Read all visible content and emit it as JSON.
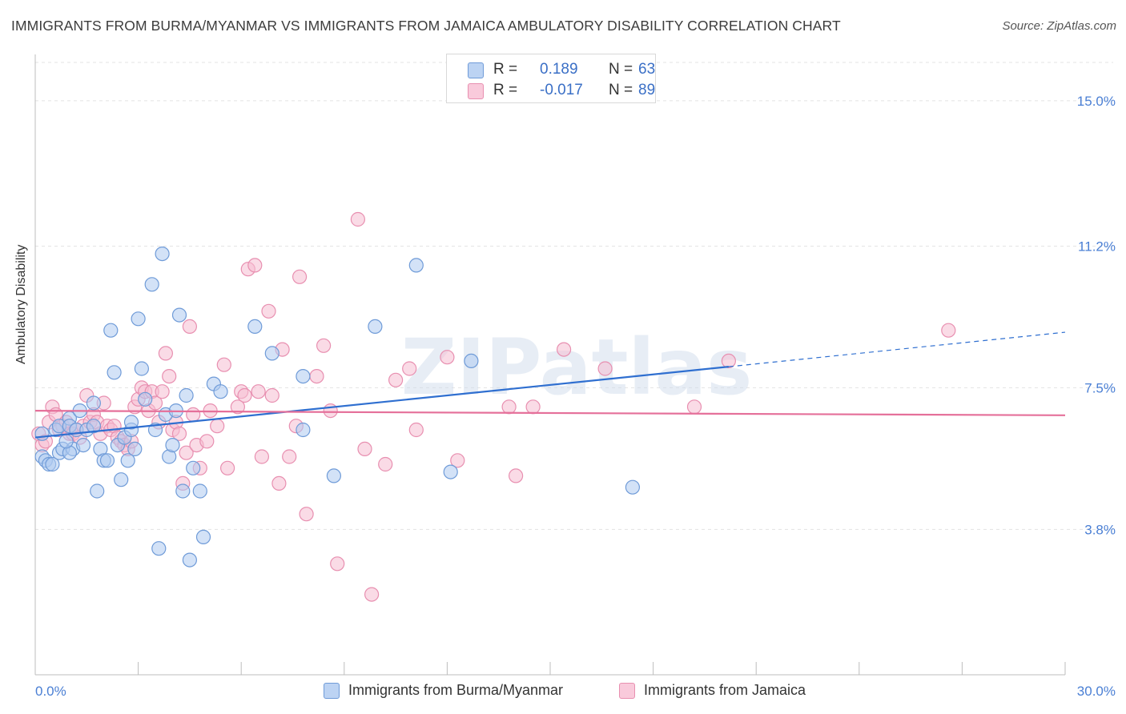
{
  "title": "IMMIGRANTS FROM BURMA/MYANMAR VS IMMIGRANTS FROM JAMAICA AMBULATORY DISABILITY CORRELATION CHART",
  "source": "Source: ZipAtlas.com",
  "watermark": "ZIPatlas",
  "legend": {
    "rows": [
      {
        "r_label": "R =",
        "r_value": "0.189",
        "n_label": "N =",
        "n_value": "63"
      },
      {
        "r_label": "R =",
        "r_value": "-0.017",
        "n_label": "N =",
        "n_value": "89"
      }
    ]
  },
  "colors": {
    "blue_fill": "#aecbf0",
    "blue_stroke": "#6f9bd8",
    "blue_line": "#2f6fd0",
    "pink_fill": "#f6bed2",
    "pink_stroke": "#e88fb0",
    "pink_line": "#e5709a",
    "tick_text": "#4a7fd4",
    "grid": "#e3e3e3"
  },
  "chart_data": {
    "type": "scatter",
    "title": "IMMIGRANTS FROM BURMA/MYANMAR VS IMMIGRANTS FROM JAMAICA AMBULATORY DISABILITY CORRELATION CHART",
    "xlabel": "",
    "ylabel": "Ambulatory Disability",
    "xlim": [
      0,
      30
    ],
    "ylim": [
      0,
      16
    ],
    "x_tick_labels": [
      "0.0%",
      "30.0%"
    ],
    "y_ticks": [
      3.8,
      7.5,
      11.2,
      15.0
    ],
    "y_tick_labels": [
      "3.8%",
      "7.5%",
      "11.2%",
      "15.0%"
    ],
    "grid": true,
    "legend_placement": "top-center",
    "series": [
      {
        "name": "Immigrants from Burma/Myanmar",
        "color": "#6f9bd8",
        "trend": {
          "x0": 0,
          "y0": 6.2,
          "x1": 20.2,
          "y1": 8.05,
          "dashed_to_x": 30,
          "dashed_to_y": 8.95
        },
        "points": [
          [
            0.2,
            6.3
          ],
          [
            0.2,
            5.7
          ],
          [
            0.3,
            5.6
          ],
          [
            0.4,
            5.5
          ],
          [
            0.5,
            5.5
          ],
          [
            0.6,
            6.4
          ],
          [
            0.7,
            6.5
          ],
          [
            0.7,
            5.8
          ],
          [
            0.8,
            5.9
          ],
          [
            1.0,
            6.7
          ],
          [
            1.0,
            6.5
          ],
          [
            1.1,
            5.9
          ],
          [
            1.2,
            6.4
          ],
          [
            1.3,
            6.9
          ],
          [
            1.4,
            6.0
          ],
          [
            1.5,
            6.4
          ],
          [
            1.7,
            6.5
          ],
          [
            1.7,
            7.1
          ],
          [
            1.8,
            4.8
          ],
          [
            1.9,
            5.9
          ],
          [
            2.0,
            5.6
          ],
          [
            2.1,
            5.6
          ],
          [
            2.2,
            9.0
          ],
          [
            2.3,
            7.9
          ],
          [
            2.4,
            6.0
          ],
          [
            2.5,
            5.1
          ],
          [
            2.6,
            6.2
          ],
          [
            2.7,
            5.6
          ],
          [
            2.8,
            6.4
          ],
          [
            2.8,
            6.6
          ],
          [
            3.0,
            9.3
          ],
          [
            3.1,
            8.0
          ],
          [
            3.2,
            7.2
          ],
          [
            3.4,
            10.2
          ],
          [
            3.5,
            6.4
          ],
          [
            3.6,
            3.3
          ],
          [
            3.7,
            11.0
          ],
          [
            3.8,
            6.8
          ],
          [
            3.9,
            5.7
          ],
          [
            4.0,
            6.0
          ],
          [
            4.1,
            6.9
          ],
          [
            4.2,
            9.4
          ],
          [
            4.3,
            4.8
          ],
          [
            4.4,
            7.3
          ],
          [
            4.5,
            3.0
          ],
          [
            4.6,
            5.4
          ],
          [
            4.8,
            4.8
          ],
          [
            4.9,
            3.6
          ],
          [
            5.2,
            7.6
          ],
          [
            5.4,
            7.4
          ],
          [
            6.4,
            9.1
          ],
          [
            6.9,
            8.4
          ],
          [
            7.8,
            7.8
          ],
          [
            7.8,
            6.4
          ],
          [
            8.7,
            5.2
          ],
          [
            9.9,
            9.1
          ],
          [
            11.1,
            10.7
          ],
          [
            12.1,
            5.3
          ],
          [
            12.7,
            8.2
          ],
          [
            17.4,
            4.9
          ],
          [
            1.0,
            5.8
          ],
          [
            2.9,
            5.9
          ],
          [
            0.9,
            6.1
          ]
        ]
      },
      {
        "name": "Immigrants from Jamaica",
        "color": "#e88fb0",
        "trend": {
          "x0": 0,
          "y0": 6.9,
          "x1": 30,
          "y1": 6.78
        },
        "points": [
          [
            0.1,
            6.3
          ],
          [
            0.2,
            6.0
          ],
          [
            0.3,
            6.1
          ],
          [
            0.4,
            6.6
          ],
          [
            0.5,
            7.0
          ],
          [
            0.6,
            6.8
          ],
          [
            0.7,
            6.4
          ],
          [
            0.8,
            6.5
          ],
          [
            0.9,
            6.6
          ],
          [
            1.0,
            6.3
          ],
          [
            1.1,
            6.3
          ],
          [
            1.2,
            6.4
          ],
          [
            1.3,
            6.2
          ],
          [
            1.4,
            6.5
          ],
          [
            1.5,
            7.3
          ],
          [
            1.6,
            6.6
          ],
          [
            1.7,
            6.8
          ],
          [
            1.8,
            6.6
          ],
          [
            1.9,
            6.3
          ],
          [
            2.0,
            7.1
          ],
          [
            2.1,
            6.5
          ],
          [
            2.2,
            6.4
          ],
          [
            2.3,
            6.5
          ],
          [
            2.4,
            6.2
          ],
          [
            2.5,
            6.1
          ],
          [
            2.6,
            6.0
          ],
          [
            2.7,
            5.9
          ],
          [
            2.8,
            6.1
          ],
          [
            2.9,
            7.0
          ],
          [
            3.0,
            7.2
          ],
          [
            3.1,
            7.5
          ],
          [
            3.2,
            7.4
          ],
          [
            3.3,
            6.9
          ],
          [
            3.4,
            7.4
          ],
          [
            3.5,
            7.1
          ],
          [
            3.6,
            6.6
          ],
          [
            3.7,
            7.4
          ],
          [
            3.8,
            8.4
          ],
          [
            3.9,
            7.8
          ],
          [
            4.0,
            6.4
          ],
          [
            4.1,
            6.6
          ],
          [
            4.2,
            6.3
          ],
          [
            4.3,
            5.0
          ],
          [
            4.4,
            5.8
          ],
          [
            4.5,
            9.1
          ],
          [
            4.6,
            6.8
          ],
          [
            4.7,
            6.0
          ],
          [
            4.8,
            5.4
          ],
          [
            5.0,
            6.1
          ],
          [
            5.1,
            6.9
          ],
          [
            5.3,
            6.5
          ],
          [
            5.5,
            8.1
          ],
          [
            5.6,
            5.4
          ],
          [
            5.9,
            7.0
          ],
          [
            6.0,
            7.4
          ],
          [
            6.1,
            7.3
          ],
          [
            6.2,
            10.6
          ],
          [
            6.4,
            10.7
          ],
          [
            6.5,
            7.4
          ],
          [
            6.6,
            5.7
          ],
          [
            6.8,
            9.5
          ],
          [
            6.9,
            7.3
          ],
          [
            7.1,
            5.0
          ],
          [
            7.2,
            8.5
          ],
          [
            7.4,
            5.7
          ],
          [
            7.6,
            6.5
          ],
          [
            7.7,
            10.4
          ],
          [
            7.9,
            4.2
          ],
          [
            8.2,
            7.8
          ],
          [
            8.4,
            8.6
          ],
          [
            8.6,
            6.9
          ],
          [
            8.8,
            2.9
          ],
          [
            9.4,
            11.9
          ],
          [
            9.6,
            5.9
          ],
          [
            9.8,
            2.1
          ],
          [
            10.2,
            5.5
          ],
          [
            10.5,
            7.7
          ],
          [
            10.9,
            8.0
          ],
          [
            11.1,
            6.4
          ],
          [
            12.0,
            8.3
          ],
          [
            12.3,
            5.6
          ],
          [
            13.8,
            7.0
          ],
          [
            14.0,
            5.2
          ],
          [
            14.5,
            7.0
          ],
          [
            15.4,
            8.5
          ],
          [
            16.6,
            8.0
          ],
          [
            19.2,
            7.0
          ],
          [
            20.2,
            8.2
          ],
          [
            26.6,
            9.0
          ]
        ]
      }
    ]
  },
  "bottom_legend": [
    {
      "label": "Immigrants from Burma/Myanmar"
    },
    {
      "label": "Immigrants from Jamaica"
    }
  ]
}
